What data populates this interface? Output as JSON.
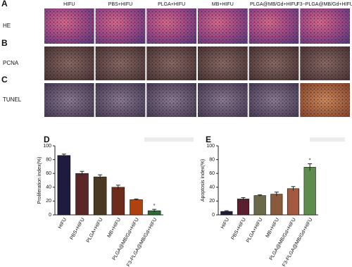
{
  "figure": {
    "panels": [
      "A",
      "B",
      "C"
    ],
    "rows": [
      "HE",
      "PCNA",
      "TUNEL"
    ],
    "columns": [
      "HIFU",
      "PBS+HIFU",
      "PLGA+HIFU",
      "MB+HIFU",
      "PLGA@MB/Gd+HIFU",
      "F3−PLGA@MB/Gd+HIFU"
    ]
  },
  "chart_data": [
    {
      "type": "bar",
      "label": "D",
      "y_label": "Proliferation index(%)",
      "categories": [
        "HIFU",
        "PBS+HIFU",
        "PLGA+HIFU",
        "MB+HIFU",
        "PLGA@MB/Gd+HIFU",
        "F3-PLGA@MB/Gd+HIFU"
      ],
      "values": [
        86,
        60,
        55,
        40,
        22,
        6
      ],
      "errors": [
        2,
        3,
        3,
        3,
        1,
        2
      ],
      "colors": [
        "#1e1b3e",
        "#5a2628",
        "#4a3a24",
        "#6e2a1a",
        "#b0420f",
        "#2e6a34"
      ],
      "ylim": [
        0,
        100
      ],
      "yticks": [
        0,
        20,
        40,
        60,
        80,
        100
      ],
      "annotations": [
        {
          "text": "*",
          "index": 5
        }
      ]
    },
    {
      "type": "bar",
      "label": "E",
      "y_label": "Apoptosis index(%)",
      "categories": [
        "HIFU",
        "PBS+HIFU",
        "PLGA+HIFU",
        "MB+HIFU",
        "PLGA@MB/Gd+HIFU",
        "F3-PLGA@MB/Gd+HIFU"
      ],
      "values": [
        5,
        23,
        28,
        30,
        38,
        69
      ],
      "errors": [
        1,
        2,
        1,
        3,
        3,
        5
      ],
      "colors": [
        "#1e1e3a",
        "#5a2030",
        "#6a6a4a",
        "#8a5a3c",
        "#a35a40",
        "#5d8c4c"
      ],
      "ylim": [
        0,
        100
      ],
      "yticks": [
        0,
        20,
        40,
        60,
        80,
        100
      ],
      "annotations": [
        {
          "text": "*",
          "index": 5
        }
      ]
    }
  ]
}
